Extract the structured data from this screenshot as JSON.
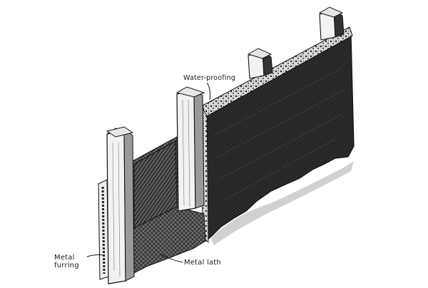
{
  "labels": {
    "waterproofing": "Water-proofing",
    "metal_furring_line1": "Metal",
    "metal_furring_line2": "furring",
    "metal_lath": "Metal lath"
  },
  "colors": {
    "ink": "#1a1a1a",
    "dark_fill": "#262626",
    "mid_fill": "#4a4a4a",
    "background": "#ffffff"
  }
}
